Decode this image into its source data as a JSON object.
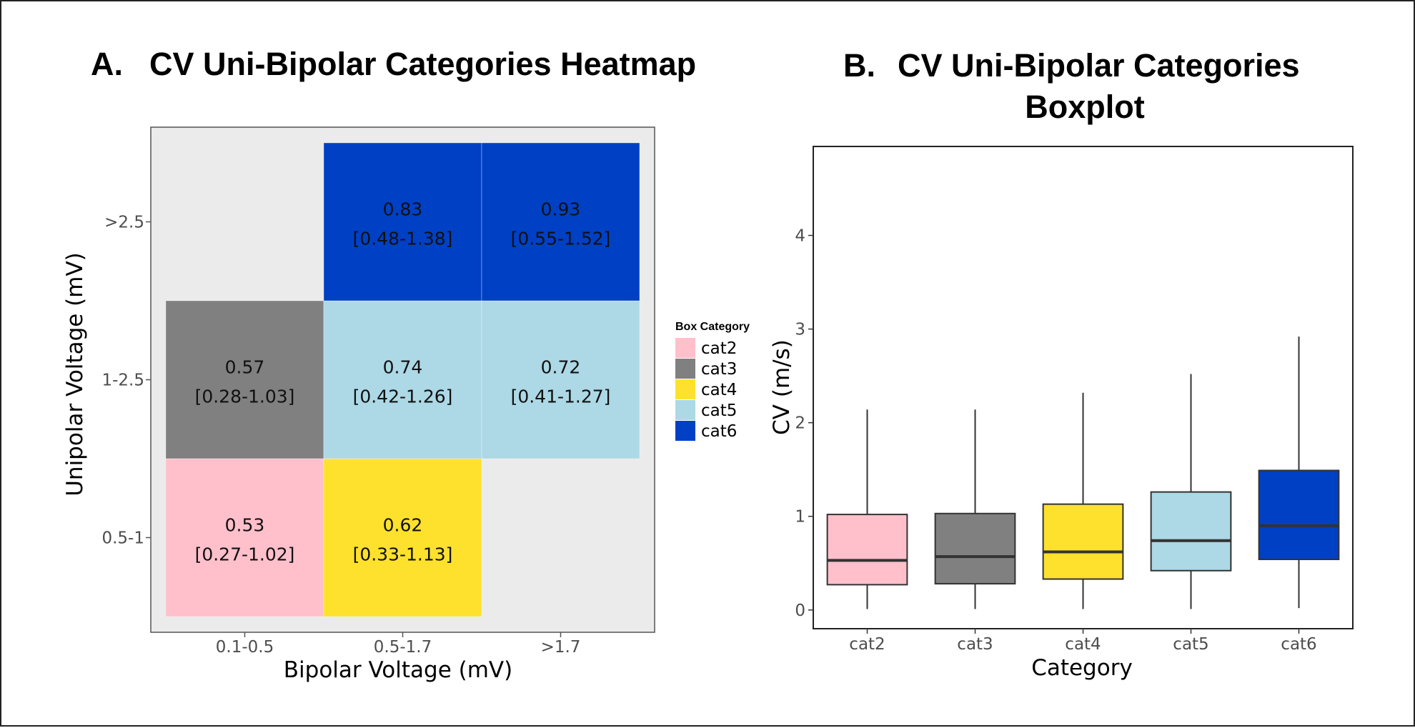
{
  "chart_data": [
    {
      "type": "heatmap",
      "panel_label": "A.",
      "title": "CV Uni-Bipolar Categories Heatmap",
      "xlabel": "Bipolar Voltage (mV)",
      "ylabel": "Unipolar Voltage (mV)",
      "x_categories": [
        "0.1-0.5",
        "0.5-1.7",
        ">1.7"
      ],
      "y_categories": [
        "0.5-1",
        "1-2.5",
        ">2.5"
      ],
      "cells": [
        {
          "x": "0.1-0.5",
          "y": "0.5-1",
          "category": "cat2",
          "value": "0.53",
          "range": "[0.27-1.02]"
        },
        {
          "x": "0.5-1.7",
          "y": "0.5-1",
          "category": "cat4",
          "value": "0.62",
          "range": "[0.33-1.13]"
        },
        {
          "x": "0.1-0.5",
          "y": "1-2.5",
          "category": "cat3",
          "value": "0.57",
          "range": "[0.28-1.03]"
        },
        {
          "x": "0.5-1.7",
          "y": "1-2.5",
          "category": "cat5",
          "value": "0.74",
          "range": "[0.42-1.26]"
        },
        {
          "x": ">1.7",
          "y": "1-2.5",
          "category": "cat5",
          "value": "0.72",
          "range": "[0.41-1.27]"
        },
        {
          "x": "0.5-1.7",
          "y": ">2.5",
          "category": "cat6",
          "value": "0.83",
          "range": "[0.48-1.38]"
        },
        {
          "x": ">1.7",
          "y": ">2.5",
          "category": "cat6",
          "value": "0.93",
          "range": "[0.55-1.52]"
        }
      ],
      "legend": {
        "title": "Box Category",
        "entries": [
          {
            "label": "cat2",
            "color": "#ffc0cb"
          },
          {
            "label": "cat3",
            "color": "#808080"
          },
          {
            "label": "cat4",
            "color": "#fde12d"
          },
          {
            "label": "cat5",
            "color": "#add8e6"
          },
          {
            "label": "cat6",
            "color": "#0040c4"
          }
        ]
      },
      "panel_background": "#ebebeb"
    },
    {
      "type": "boxplot",
      "panel_label": "B.",
      "title_lines": [
        "CV Uni-Bipolar Categories",
        "Boxplot"
      ],
      "xlabel": "Category",
      "ylabel": "CV (m/s)",
      "ylim": [
        -0.2,
        4.95
      ],
      "yticks": [
        0,
        1,
        2,
        3,
        4
      ],
      "boxes": [
        {
          "category": "cat2",
          "color": "#ffc0cb",
          "whisker_low": 0.01,
          "q1": 0.27,
          "median": 0.53,
          "q3": 1.02,
          "whisker_high": 2.14
        },
        {
          "category": "cat3",
          "color": "#808080",
          "whisker_low": 0.01,
          "q1": 0.28,
          "median": 0.57,
          "q3": 1.03,
          "whisker_high": 2.14
        },
        {
          "category": "cat4",
          "color": "#fde12d",
          "whisker_low": 0.01,
          "q1": 0.33,
          "median": 0.62,
          "q3": 1.13,
          "whisker_high": 2.32
        },
        {
          "category": "cat5",
          "color": "#add8e6",
          "whisker_low": 0.01,
          "q1": 0.42,
          "median": 0.74,
          "q3": 1.26,
          "whisker_high": 2.52
        },
        {
          "category": "cat6",
          "color": "#0040c4",
          "whisker_low": 0.02,
          "q1": 0.54,
          "median": 0.9,
          "q3": 1.49,
          "whisker_high": 2.92
        }
      ]
    }
  ]
}
